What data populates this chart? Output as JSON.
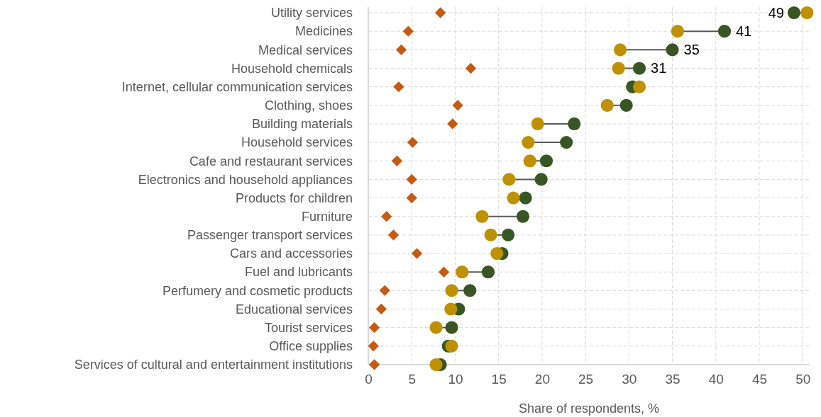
{
  "chart_data": {
    "type": "scatter",
    "orientation": "horizontal",
    "xlabel": "Share of respondents, %",
    "xlim": [
      0,
      50.8
    ],
    "xticks": [
      0,
      5,
      10,
      15,
      20,
      25,
      30,
      35,
      40,
      45,
      50
    ],
    "grid": true,
    "categories": [
      "Utility services",
      "Medicines",
      "Medical services",
      "Household chemicals",
      "Internet, cellular communication services",
      "Clothing, shoes",
      "Building materials",
      "Household services",
      "Cafe and restaurant services",
      "Electronics and household appliances",
      "Products for children",
      "Furniture",
      "Passenger transport services",
      "Cars and accessories",
      "Fuel and lubricants",
      "Perfumery and cosmetic products",
      "Educational services",
      "Tourist services",
      "Office supplies",
      "Services of cultural and entertainment institutions"
    ],
    "series": [
      {
        "color": "#c65a11",
        "marker": "diamond",
        "values": [
          8.3,
          4.6,
          3.8,
          11.8,
          3.5,
          10.3,
          9.7,
          5.1,
          3.3,
          5.0,
          5.0,
          2.1,
          2.9,
          5.6,
          8.7,
          1.9,
          1.5,
          0.7,
          0.6,
          0.7
        ]
      },
      {
        "color": "#375623",
        "marker": "circle",
        "values": [
          49.0,
          41.0,
          35.0,
          31.2,
          30.4,
          29.7,
          23.7,
          22.8,
          20.5,
          19.9,
          18.1,
          17.8,
          16.1,
          15.4,
          13.8,
          11.7,
          10.4,
          9.6,
          9.2,
          8.3
        ],
        "value_labels": [
          "49",
          "41",
          "35",
          "31",
          null,
          null,
          null,
          null,
          null,
          null,
          null,
          null,
          null,
          null,
          null,
          null,
          null,
          null,
          null,
          null
        ]
      },
      {
        "color": "#bf9000",
        "marker": "circle",
        "values": [
          50.5,
          35.6,
          29.0,
          28.8,
          31.2,
          27.5,
          19.5,
          18.4,
          18.6,
          16.2,
          16.7,
          13.1,
          14.1,
          14.8,
          10.8,
          9.6,
          9.5,
          7.8,
          9.6,
          7.8
        ]
      }
    ]
  }
}
